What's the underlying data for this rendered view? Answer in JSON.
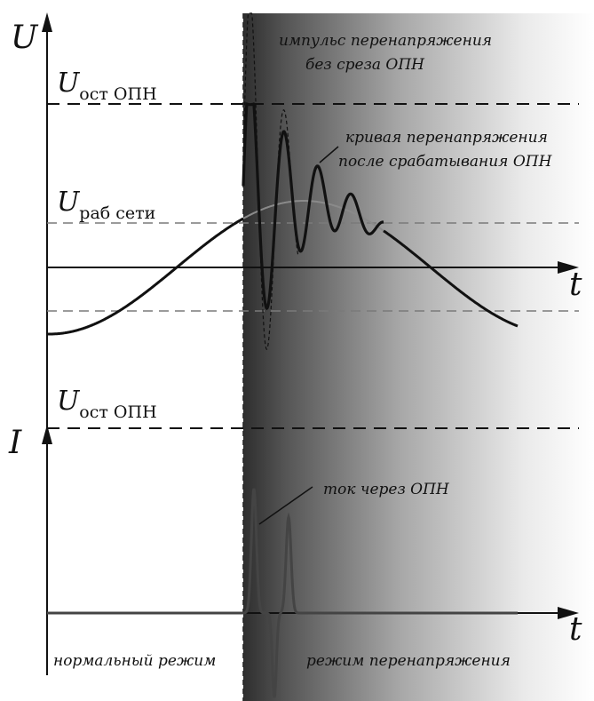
{
  "axes": {
    "voltage_symbol": "U",
    "current_symbol": "I",
    "time_symbol_upper": "t",
    "time_symbol_lower": "t"
  },
  "levels": {
    "residual_top": {
      "main": "U",
      "sub": "ост ОПН"
    },
    "working": {
      "main": "U",
      "sub": "раб сети"
    },
    "residual_bottom": {
      "main": "U",
      "sub": "ост ОПН"
    }
  },
  "annotations": {
    "impulse_line1": "импульс перенапряжения",
    "impulse_line2": "без среза ОПН",
    "curve_line1": "кривая перенапряжения",
    "curve_line2": "после срабатывания ОПН",
    "current": "ток через ОПН"
  },
  "modes": {
    "normal": "нормальный режим",
    "overvoltage": "режим перенапряжения"
  },
  "colors": {
    "ink": "#111111",
    "grey_curve": "#8a8a8a",
    "dashed_grey": "#7a7a7a",
    "shade_dark": "#3a3a3a",
    "shade_light": "#ffffff"
  }
}
